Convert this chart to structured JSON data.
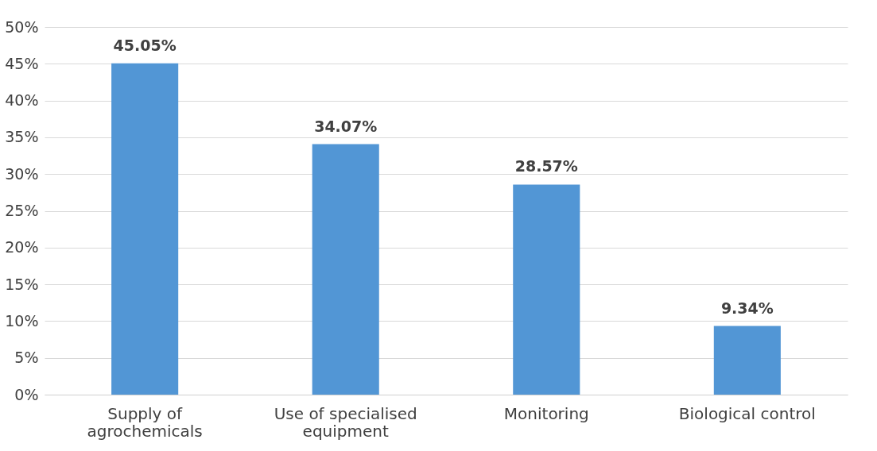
{
  "chart_data": {
    "type": "bar",
    "categories": [
      "Supply of agrochemicals",
      "Use of specialised equipment",
      "Monitoring",
      "Biological control"
    ],
    "values": [
      45.05,
      34.07,
      28.57,
      9.34
    ],
    "value_labels": [
      "45.05%",
      "34.07%",
      "28.57%",
      "9.34%"
    ],
    "color": "#5296d5",
    "ylim": [
      0,
      50
    ],
    "yticks": [
      {
        "value": 0,
        "label": "0%"
      },
      {
        "value": 5,
        "label": "5%"
      },
      {
        "value": 10,
        "label": "10%"
      },
      {
        "value": 15,
        "label": "15%"
      },
      {
        "value": 20,
        "label": "20%"
      },
      {
        "value": 25,
        "label": "25%"
      },
      {
        "value": 30,
        "label": "30%"
      },
      {
        "value": 35,
        "label": "35%"
      },
      {
        "value": 40,
        "label": "40%"
      },
      {
        "value": 45,
        "label": "45%"
      },
      {
        "value": 50,
        "label": "50%"
      }
    ],
    "grid": "y"
  }
}
